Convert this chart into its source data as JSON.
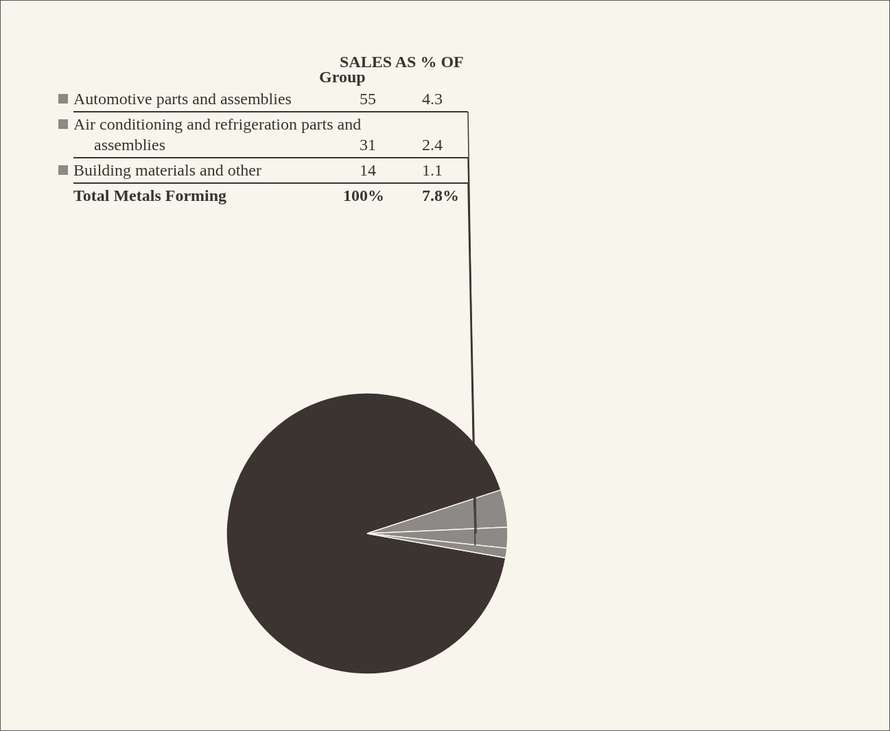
{
  "chart_data": {
    "type": "pie",
    "categories": [
      null,
      "Automotive parts and assemblies",
      "Air conditioning and refrigeration parts and assemblies",
      "Building materials and other"
    ],
    "values": [
      92.2,
      4.3,
      2.4,
      1.1
    ],
    "colors": [
      "#3b3431",
      "#8c8986",
      "#8c8986",
      "#8c8986"
    ],
    "annotations": [
      "SALES AS % OF",
      "Group",
      "55",
      "31",
      "14",
      "Total Metals Forming",
      "100%",
      "7.8%",
      "4.3",
      "2.4",
      "1.1"
    ],
    "legend": "top left"
  }
}
